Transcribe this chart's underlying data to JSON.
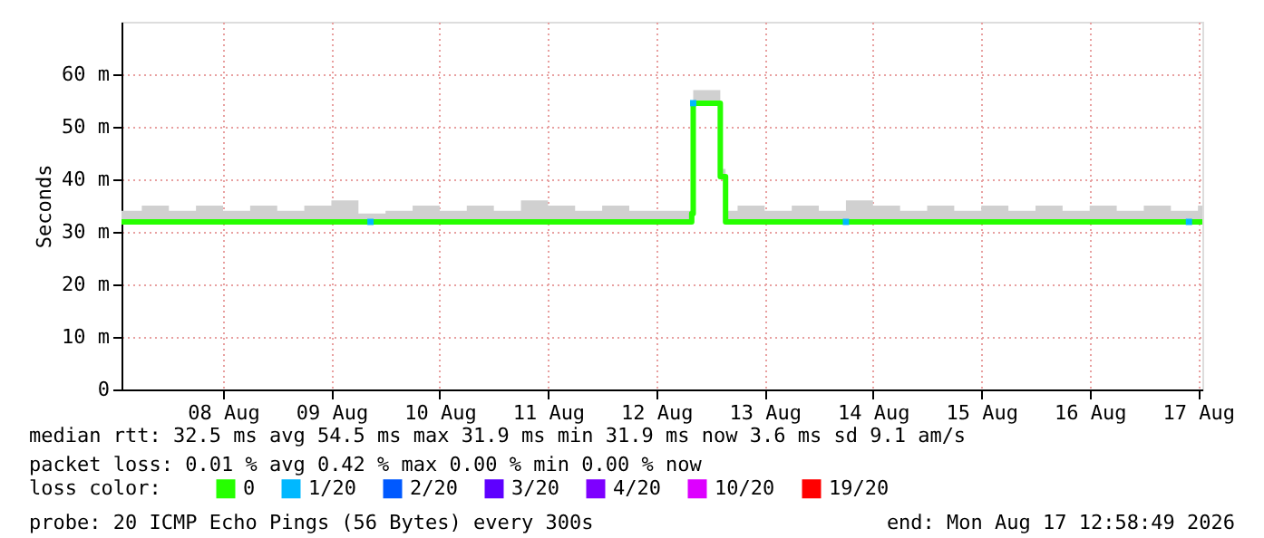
{
  "chart_data": {
    "type": "step",
    "ylabel": "Seconds",
    "legend_title": "loss color:",
    "legend": "bottom",
    "grid": true,
    "line_style": "solid",
    "xlim": [
      "2026-08-07T13:30",
      "2026-08-17T12:58"
    ],
    "xticks": [
      {
        "value": "2026-08-08T12:00",
        "label": "08 Aug"
      },
      {
        "value": "2026-08-09T12:00",
        "label": "09 Aug"
      },
      {
        "value": "2026-08-10T12:00",
        "label": "10 Aug"
      },
      {
        "value": "2026-08-11T12:00",
        "label": "11 Aug"
      },
      {
        "value": "2026-08-12T12:00",
        "label": "12 Aug"
      },
      {
        "value": "2026-08-13T12:00",
        "label": "13 Aug"
      },
      {
        "value": "2026-08-14T12:00",
        "label": "14 Aug"
      },
      {
        "value": "2026-08-15T12:00",
        "label": "15 Aug"
      },
      {
        "value": "2026-08-16T12:00",
        "label": "16 Aug"
      },
      {
        "value": "2026-08-17T12:00",
        "label": "17 Aug"
      }
    ],
    "ylim": [
      0,
      70
    ],
    "yticks": [
      0,
      {
        "value": 10,
        "label": "10 m"
      },
      {
        "value": 20,
        "label": "20 m"
      },
      {
        "value": 30,
        "label": "30 m"
      },
      {
        "value": 40,
        "label": "40 m"
      },
      {
        "value": 50,
        "label": "50 m"
      },
      {
        "value": 60,
        "label": "60 m"
      }
    ],
    "series": [
      {
        "name": "0",
        "color": "#26ff00",
        "marker": "none",
        "x": [
          "2026-08-07T13:30",
          "2026-08-07T18:00",
          "2026-08-08T00:00",
          "2026-08-08T06:00",
          "2026-08-08T12:00",
          "2026-08-08T18:00",
          "2026-08-09T00:00",
          "2026-08-09T06:00",
          "2026-08-09T12:00",
          "2026-08-09T18:00",
          "2026-08-10T00:00",
          "2026-08-10T06:00",
          "2026-08-10T12:00",
          "2026-08-10T18:00",
          "2026-08-11T00:00",
          "2026-08-11T06:00",
          "2026-08-11T12:00",
          "2026-08-11T18:00",
          "2026-08-12T00:00",
          "2026-08-12T06:00",
          "2026-08-12T12:00",
          "2026-08-12T18:00",
          "2026-08-12T19:50",
          "2026-08-12T20:10",
          "2026-08-13T02:10",
          "2026-08-13T03:20",
          "2026-08-13T06:00",
          "2026-08-13T12:00",
          "2026-08-13T18:00",
          "2026-08-14T00:00",
          "2026-08-14T06:00",
          "2026-08-14T12:00",
          "2026-08-14T18:00",
          "2026-08-15T00:00",
          "2026-08-15T06:00",
          "2026-08-15T12:00",
          "2026-08-15T18:00",
          "2026-08-16T00:00",
          "2026-08-16T06:00",
          "2026-08-16T12:00",
          "2026-08-16T18:00",
          "2026-08-17T00:00",
          "2026-08-17T06:00",
          "2026-08-17T12:00",
          "2026-08-17T12:58"
        ],
        "values": [
          31.9,
          31.9,
          31.9,
          31.9,
          31.9,
          31.9,
          31.9,
          31.9,
          31.9,
          31.9,
          31.9,
          31.9,
          31.9,
          31.9,
          31.9,
          31.9,
          31.9,
          31.9,
          31.9,
          31.9,
          31.9,
          31.9,
          33.5,
          54.5,
          40.5,
          31.9,
          31.9,
          31.9,
          31.9,
          31.9,
          31.9,
          31.9,
          31.9,
          31.9,
          31.9,
          31.9,
          31.9,
          31.9,
          31.9,
          31.9,
          31.9,
          31.9,
          31.9,
          31.9,
          31.9
        ],
        "lower": [
          31.9,
          31.9,
          31.9,
          31.9,
          31.9,
          31.9,
          31.9,
          31.9,
          31.9,
          31.9,
          31.9,
          31.9,
          31.9,
          31.9,
          31.9,
          31.9,
          31.9,
          31.9,
          31.9,
          31.9,
          31.9,
          31.9,
          31.9,
          54.5,
          40.5,
          31.9,
          31.9,
          31.9,
          31.9,
          31.9,
          31.9,
          31.9,
          31.9,
          31.9,
          31.9,
          31.9,
          31.9,
          31.9,
          31.9,
          31.9,
          31.9,
          31.9,
          31.9,
          31.9,
          31.9
        ],
        "upper": [
          34,
          35,
          34,
          35,
          34,
          35,
          34,
          35,
          36,
          33.5,
          34,
          35,
          34,
          35,
          34,
          36,
          35,
          34,
          35,
          34,
          34,
          34,
          36,
          57,
          42,
          34,
          35,
          34,
          35,
          34,
          36,
          35,
          34,
          35,
          34,
          35,
          34,
          35,
          34,
          35,
          34,
          35,
          34,
          35,
          35
        ]
      },
      {
        "name": "1/20",
        "type": "scatter",
        "color": "#00b8ff",
        "marker": "square",
        "x": [
          "2026-08-09T20:40",
          "2026-08-12T20:10",
          "2026-08-14T06:00",
          "2026-08-17T10:00"
        ],
        "values": [
          31.9,
          54.5,
          31.9,
          31.9
        ]
      },
      {
        "name": "2/20",
        "type": "scatter",
        "color": "#0059ff",
        "marker": "square"
      },
      {
        "name": "3/20",
        "type": "scatter",
        "color": "#5e00ff",
        "marker": "square"
      },
      {
        "name": "4/20",
        "type": "scatter",
        "color": "#7e00ff",
        "marker": "square"
      },
      {
        "name": "10/20",
        "type": "scatter",
        "color": "#dd00ff",
        "marker": "square"
      },
      {
        "name": "19/20",
        "type": "scatter",
        "color": "#ff0000",
        "marker": "square"
      }
    ],
    "annotations": [
      "median rtt:  32.5 ms avg  54.5 ms max  31.9 ms min  31.9 ms now  3.6 ms sd  9.1   am/s",
      "packet loss: 0.01 % avg  0.42 % max  0.00 % min  0.00 % now",
      "probe:       20 ICMP Echo Pings (56 Bytes) every 300s",
      "end: Mon Aug 17 12:58:49 2026"
    ]
  }
}
